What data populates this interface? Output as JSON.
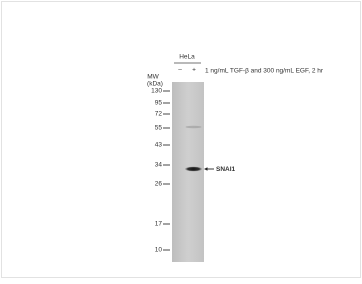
{
  "sample": "HeLa",
  "lanes": [
    "–",
    "+"
  ],
  "treatment": "1 ng/mL TGF-β and 300 ng/mL EGF, 2 hr",
  "mw_title": "MW",
  "mw_unit": "(kDa)",
  "markers": [
    130,
    95,
    72,
    55,
    43,
    34,
    26,
    17,
    10
  ],
  "target": "SNAI1"
}
